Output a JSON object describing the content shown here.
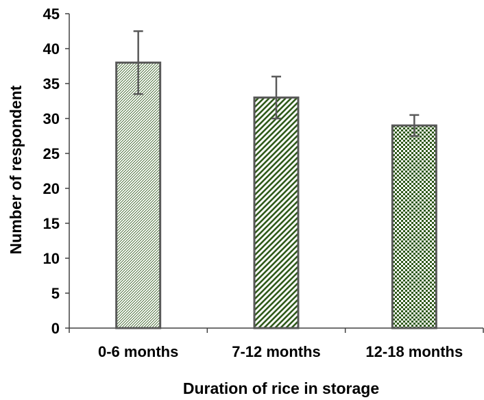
{
  "chart_data": {
    "type": "bar",
    "xlabel": "Duration of rice in storage",
    "ylabel": "Number of respondent",
    "ylim": [
      0,
      45
    ],
    "yticks": [
      0,
      5,
      10,
      15,
      20,
      25,
      30,
      35,
      40,
      45
    ],
    "categories": [
      "0-6 months",
      "7-12 months",
      "12-18 months"
    ],
    "values": [
      38,
      33,
      29
    ],
    "error_low": [
      33.5,
      30,
      27.5
    ],
    "error_high": [
      42.5,
      36,
      30.5
    ],
    "patterns": [
      "fine-diagonal",
      "wide-diagonal",
      "checker"
    ],
    "colors": {
      "bar_pattern": "#2f5a1a",
      "bar_border": "#595959",
      "error_bar": "#595959",
      "axis": "#404040"
    },
    "grid": false,
    "legend": "none"
  }
}
